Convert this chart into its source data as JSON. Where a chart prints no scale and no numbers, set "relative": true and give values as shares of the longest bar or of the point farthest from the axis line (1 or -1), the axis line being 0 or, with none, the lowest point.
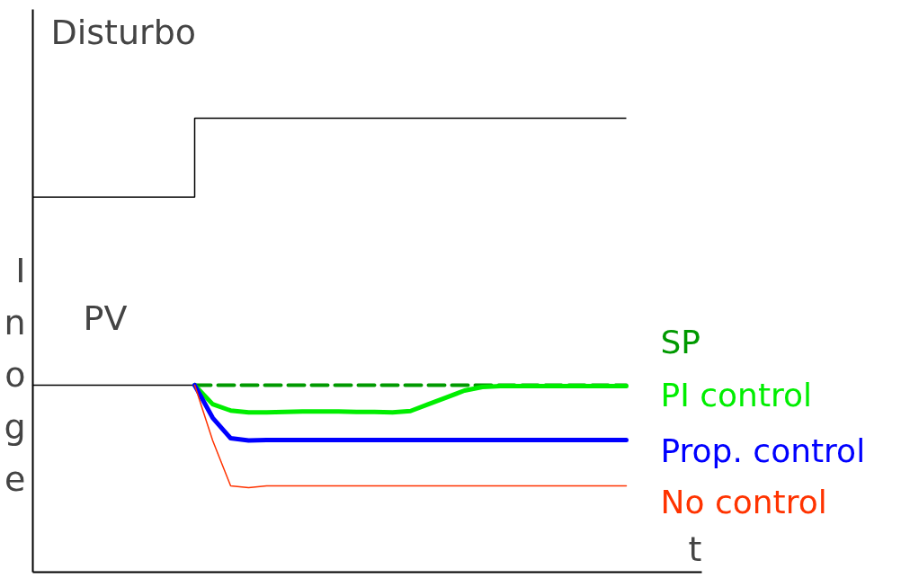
{
  "chart_data": {
    "type": "line",
    "relative": true,
    "xlabel": "t",
    "ylabel": "Inoge",
    "annotations": [
      "Disturbo",
      "PV"
    ],
    "categories": [
      null,
      null,
      null,
      null,
      null,
      null,
      null,
      null,
      null,
      null,
      null,
      null,
      null,
      null,
      null,
      null,
      null,
      null,
      null,
      null,
      null,
      null,
      null,
      null,
      null,
      null,
      null,
      null,
      null,
      null,
      null,
      null,
      null,
      null
    ],
    "series": [
      {
        "type": "step",
        "color": "#000000",
        "values": [
          0.826,
          0.826,
          0.826,
          0.826,
          0.826,
          0.826,
          0.826,
          0.826,
          0.826,
          1,
          1,
          1,
          1,
          1,
          1,
          1,
          1,
          1,
          1,
          1,
          1,
          1,
          1,
          1,
          1,
          1,
          1,
          1,
          1,
          1,
          1,
          1,
          1,
          1
        ]
      },
      {
        "color": "#000000",
        "values": [
          0.412,
          0.412,
          0.412,
          0.412,
          0.412,
          0.412,
          0.412,
          0.412,
          0.412,
          0.412,
          null,
          null,
          null,
          null,
          null,
          null,
          null,
          null,
          null,
          null,
          null,
          null,
          null,
          null,
          null,
          null,
          null,
          null,
          null,
          null,
          null,
          null,
          null,
          null
        ]
      },
      {
        "name": "SP",
        "color": "#009900",
        "line_style": "dashed",
        "values": [
          null,
          null,
          null,
          null,
          null,
          null,
          null,
          null,
          null,
          0.412,
          0.412,
          0.412,
          0.412,
          0.412,
          0.412,
          0.412,
          0.412,
          0.412,
          0.412,
          0.412,
          0.412,
          0.412,
          0.412,
          0.412,
          0.412,
          0.412,
          0.412,
          0.412,
          0.412,
          0.412,
          0.412,
          0.412,
          0.412,
          0.412
        ]
      },
      {
        "name": "PI control",
        "color": "#00ee00",
        "values": [
          null,
          null,
          null,
          null,
          null,
          null,
          null,
          null,
          null,
          0.412,
          0.37,
          0.356,
          0.352,
          0.352,
          0.353,
          0.354,
          0.354,
          0.354,
          0.353,
          0.353,
          0.352,
          0.355,
          0.37,
          0.385,
          0.4,
          0.408,
          0.41,
          0.41,
          0.41,
          0.41,
          0.41,
          0.41,
          0.41,
          0.41
        ]
      },
      {
        "name": "Prop. control",
        "color": "#0000ff",
        "values": [
          null,
          null,
          null,
          null,
          null,
          null,
          null,
          null,
          null,
          0.412,
          0.34,
          0.295,
          0.29,
          0.291,
          0.291,
          0.291,
          0.291,
          0.291,
          0.291,
          0.291,
          0.291,
          0.291,
          0.291,
          0.291,
          0.291,
          0.291,
          0.291,
          0.291,
          0.291,
          0.291,
          0.291,
          0.291,
          0.291,
          0.291
        ]
      },
      {
        "name": "No control",
        "color": "#ff3300",
        "values": [
          null,
          null,
          null,
          null,
          null,
          null,
          null,
          null,
          null,
          0.412,
          0.29,
          0.19,
          0.186,
          0.19,
          0.19,
          0.19,
          0.19,
          0.19,
          0.19,
          0.19,
          0.19,
          0.19,
          0.19,
          0.19,
          0.19,
          0.19,
          0.19,
          0.19,
          0.19,
          0.19,
          0.19,
          0.19,
          0.19,
          0.19
        ]
      }
    ]
  }
}
